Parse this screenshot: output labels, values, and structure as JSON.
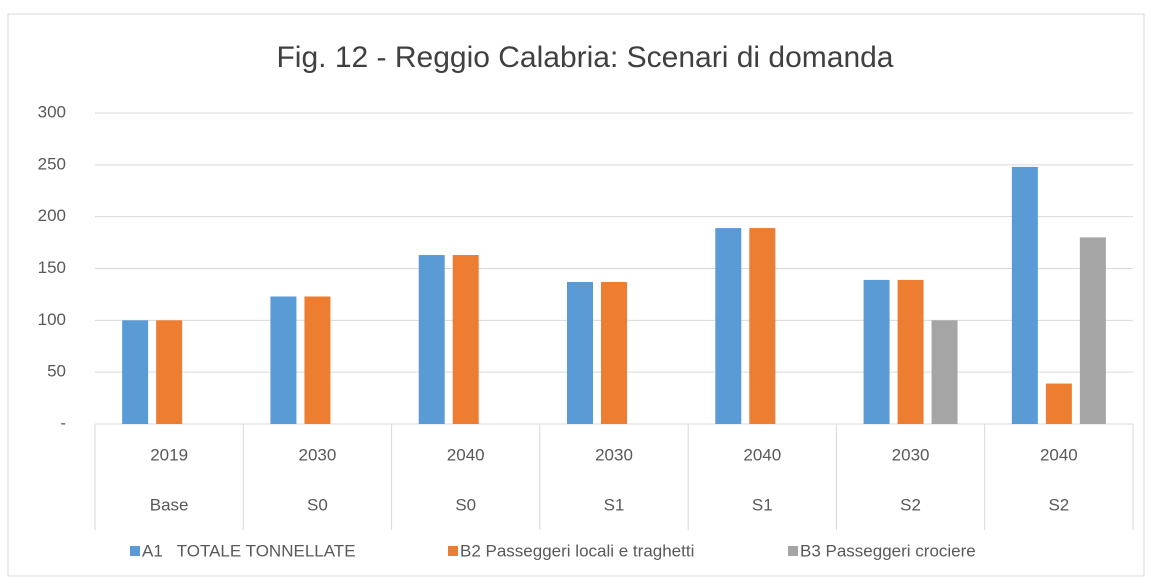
{
  "chart_data": {
    "type": "bar",
    "title": "Fig. 12 - Reggio Calabria: Scenari di domanda",
    "categories": [
      "2019",
      "2030",
      "2040",
      "2030",
      "2040",
      "2030",
      "2040"
    ],
    "category_groups": [
      "Base",
      "S0",
      "S0",
      "S1",
      "S1",
      "S2",
      "S2"
    ],
    "series": [
      {
        "name": "A1   TOTALE TONNELLATE",
        "color": "#5b9bd5",
        "values": [
          100,
          123,
          163,
          137,
          189,
          139,
          248
        ]
      },
      {
        "name": "B2 Passeggeri locali e traghetti",
        "color": "#ed7d31",
        "values": [
          100,
          123,
          163,
          137,
          189,
          139,
          39
        ]
      },
      {
        "name": "B3 Passeggeri crociere",
        "color": "#a5a5a5",
        "values": [
          null,
          null,
          null,
          null,
          null,
          100,
          180
        ]
      }
    ],
    "ylim": [
      0,
      300
    ],
    "yticks": [
      {
        "value": 0,
        "label": "-"
      },
      50,
      100,
      150,
      200,
      250,
      300
    ],
    "grid": true,
    "legend": "bottom"
  }
}
